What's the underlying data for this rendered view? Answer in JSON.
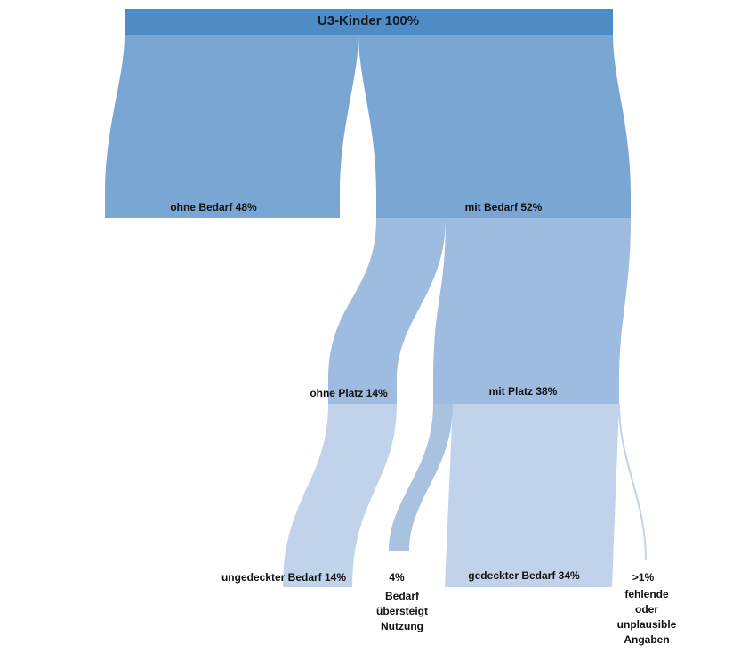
{
  "diagram": {
    "type": "sankey",
    "colors": {
      "level0_bar": "#4f8bc4",
      "level1_flow": "#7aa6d4",
      "level1_bar": "#7aa6d4",
      "level2_flow": "#9dbce0",
      "level2_bar": "#9dbce0",
      "level3_flow": "#c1d3ea",
      "tiny_flow": "#a8c2e0"
    },
    "root": {
      "label": "U3-Kinder 100%",
      "value": 100
    },
    "nodes": [
      {
        "id": "ohne_bedarf",
        "label": "ohne Bedarf 48%",
        "value": 48,
        "parent": "root"
      },
      {
        "id": "mit_bedarf",
        "label": "mit Bedarf 52%",
        "value": 52,
        "parent": "root"
      },
      {
        "id": "ohne_platz",
        "label": "ohne Platz 14%",
        "value": 14,
        "parent": "mit_bedarf"
      },
      {
        "id": "mit_platz",
        "label": "mit Platz 38%",
        "value": 38,
        "parent": "mit_bedarf"
      },
      {
        "id": "ungedeckt",
        "label": "ungedeckter Bedarf 14%",
        "value": 14,
        "parent": "ohne_platz"
      },
      {
        "id": "uebersteigt",
        "label": "4%",
        "sublabel": [
          "Bedarf",
          "übersteigt",
          "Nutzung"
        ],
        "value": 4,
        "parent": "mit_platz"
      },
      {
        "id": "gedeckt",
        "label": "gedeckter Bedarf 34%",
        "value": 34,
        "parent": "mit_platz"
      },
      {
        "id": "fehlend",
        "label": ">1%",
        "sublabel": [
          "fehlende",
          "oder",
          "unplausible",
          "Angaben"
        ],
        "value": 1,
        "parent": "mit_platz"
      }
    ]
  }
}
